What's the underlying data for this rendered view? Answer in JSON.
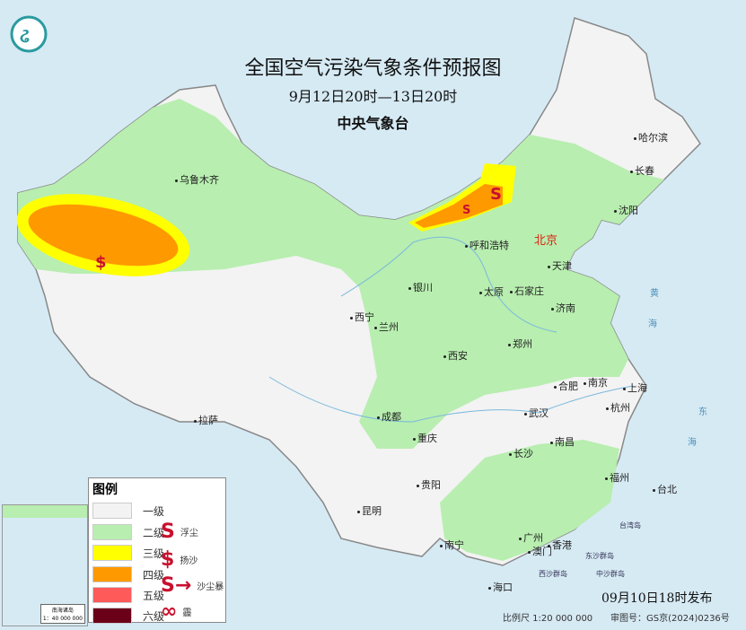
{
  "title": {
    "main": "全国空气污染气象条件预报图",
    "period": "9月12日20时—13日20时",
    "issuer": "中央气象台"
  },
  "colors": {
    "level1": "#f3f3f3",
    "level2": "#b8eeb0",
    "level3": "#ffff00",
    "level4": "#ff9900",
    "level5": "#ff5a5a",
    "level6": "#6b0019",
    "sand": "#c8102e",
    "sea": "#d6eaf4"
  },
  "cities": {
    "wulumuqi": "乌鲁木齐",
    "haerbin": "哈尔滨",
    "changchun": "长春",
    "shenyang": "沈阳",
    "beijing": "北京",
    "tianjin": "天津",
    "huhehaote": "呼和浩特",
    "yinchuan": "银川",
    "taiyuan": "太原",
    "shijiazhuang": "石家庄",
    "jinan": "济南",
    "xining": "西宁",
    "lanzhou": "兰州",
    "xian": "西安",
    "zhengzhou": "郑州",
    "hefei": "合肥",
    "nanjing": "南京",
    "shanghai": "上海",
    "hangzhou": "杭州",
    "wuhan": "武汉",
    "chengdu": "成都",
    "chongqing": "重庆",
    "lasa": "拉萨",
    "changsha": "长沙",
    "nanchang": "南昌",
    "guiyang": "贵阳",
    "kunming": "昆明",
    "fuzhou": "福州",
    "taibei": "台北",
    "nanning": "南宁",
    "guangzhou": "广州",
    "aomen": "澳门",
    "xianggang": "香港",
    "haikou": "海口"
  },
  "islands": {
    "taiwan": "台湾岛",
    "dongsha": "东沙群岛",
    "zhongsha": "中沙群岛",
    "xisha": "西沙群岛"
  },
  "seas": {
    "huang1": "黄",
    "huang2": "海",
    "dong1": "东",
    "dong2": "海"
  },
  "legend": {
    "title": "图例",
    "levels": [
      "一级",
      "二级",
      "三级",
      "四级",
      "五级",
      "六级"
    ],
    "symbols": [
      {
        "icon": "floating-dust-icon",
        "label": "浮尘"
      },
      {
        "icon": "blowing-sand-icon",
        "label": "扬沙"
      },
      {
        "icon": "sandstorm-icon",
        "label": "沙尘暴"
      },
      {
        "icon": "haze-icon",
        "label": "霾"
      }
    ]
  },
  "inset": {
    "title": "南海诸岛",
    "scale": "1：40 000 000"
  },
  "footer": {
    "issued": "09月10日18时发布",
    "scale": "比例尺 1:20 000 000",
    "review": "审图号：GS京(2024)0236号"
  }
}
